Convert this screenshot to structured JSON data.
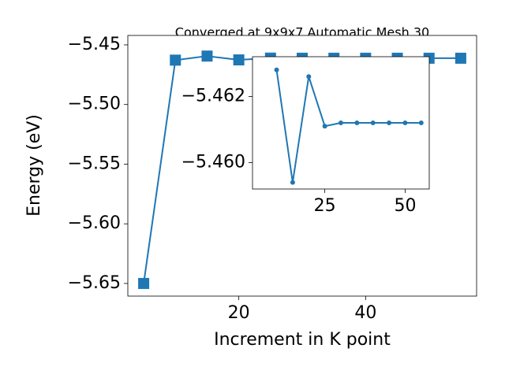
{
  "chart_data": [
    {
      "type": "line",
      "title": "Converged at 9x9x7 Automatic Mesh 30",
      "x_label": "Increment in K point",
      "y_label": "Energy (eV)",
      "marker": "square",
      "color": "#1f77b4",
      "x": [
        5,
        10,
        15,
        20,
        25,
        30,
        35,
        40,
        45,
        50,
        55
      ],
      "series": [
        {
          "color": "#1f77b4",
          "values": [
            -5.65,
            -5.4628,
            -5.4594,
            -5.4626,
            -5.4611,
            -5.4612,
            -5.4612,
            -5.4612,
            -5.4612,
            -5.4612,
            -5.4612
          ]
        }
      ],
      "xlim": [
        2.5,
        57.5
      ],
      "xticks": [
        20,
        40
      ],
      "ylim": [
        -5.6606,
        -5.4421
      ],
      "yticks": [
        {
          "value": -5.65,
          "label": "−5.65"
        },
        {
          "value": -5.6,
          "label": "−5.60"
        },
        {
          "value": -5.55,
          "label": "−5.55"
        },
        {
          "value": -5.5,
          "label": "−5.50"
        },
        {
          "value": -5.45,
          "label": "−5.45"
        }
      ]
    },
    {
      "type": "line",
      "marker": "circle",
      "color": "#1f77b4",
      "x": [
        10,
        15,
        20,
        25,
        30,
        35,
        40,
        45,
        50,
        55
      ],
      "series": [
        {
          "color": "#1f77b4",
          "values": [
            -5.4628,
            -5.4594,
            -5.4626,
            -5.4611,
            -5.4612,
            -5.4612,
            -5.4612,
            -5.4612,
            -5.4612,
            -5.4612
          ]
        }
      ],
      "xlim": [
        2.5,
        57.5
      ],
      "xticks": [
        25,
        50
      ],
      "ylim": [
        -5.4592,
        -5.4632
      ],
      "yticks": [
        {
          "value": -5.462,
          "label": "−5.462"
        },
        {
          "value": -5.46,
          "label": "−5.460"
        }
      ]
    }
  ]
}
